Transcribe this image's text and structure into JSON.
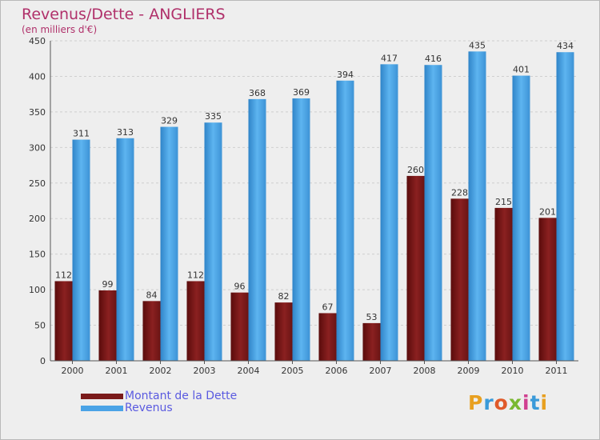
{
  "title": "Revenus/Dette - ANGLIERS",
  "subtitle": "(en milliers d'€)",
  "brand": "Proxiti",
  "colors": {
    "dette": "#7a1a1a",
    "revenus": "#4aa3e6",
    "title": "#b0306a",
    "legend_text": "#5a5ae0"
  },
  "legend": [
    {
      "label": "Montant de la Dette",
      "color": "#7a1a1a"
    },
    {
      "label": "Revenus",
      "color": "#4aa3e6"
    }
  ],
  "chart_data": {
    "type": "bar",
    "title": "Revenus/Dette - ANGLIERS",
    "subtitle": "(en milliers d'€)",
    "categories": [
      "2000",
      "2001",
      "2002",
      "2003",
      "2004",
      "2005",
      "2006",
      "2007",
      "2008",
      "2009",
      "2010",
      "2011"
    ],
    "series": [
      {
        "name": "Montant de la Dette",
        "values": [
          112,
          99,
          84,
          112,
          96,
          82,
          67,
          53,
          260,
          228,
          215,
          201
        ]
      },
      {
        "name": "Revenus",
        "values": [
          311,
          313,
          329,
          335,
          368,
          369,
          394,
          417,
          416,
          435,
          401,
          434
        ]
      }
    ],
    "ylim": [
      0,
      450
    ],
    "yticks": [
      0,
      50,
      100,
      150,
      200,
      250,
      300,
      350,
      400,
      450
    ],
    "grid": true,
    "legend_position": "bottom-left"
  }
}
